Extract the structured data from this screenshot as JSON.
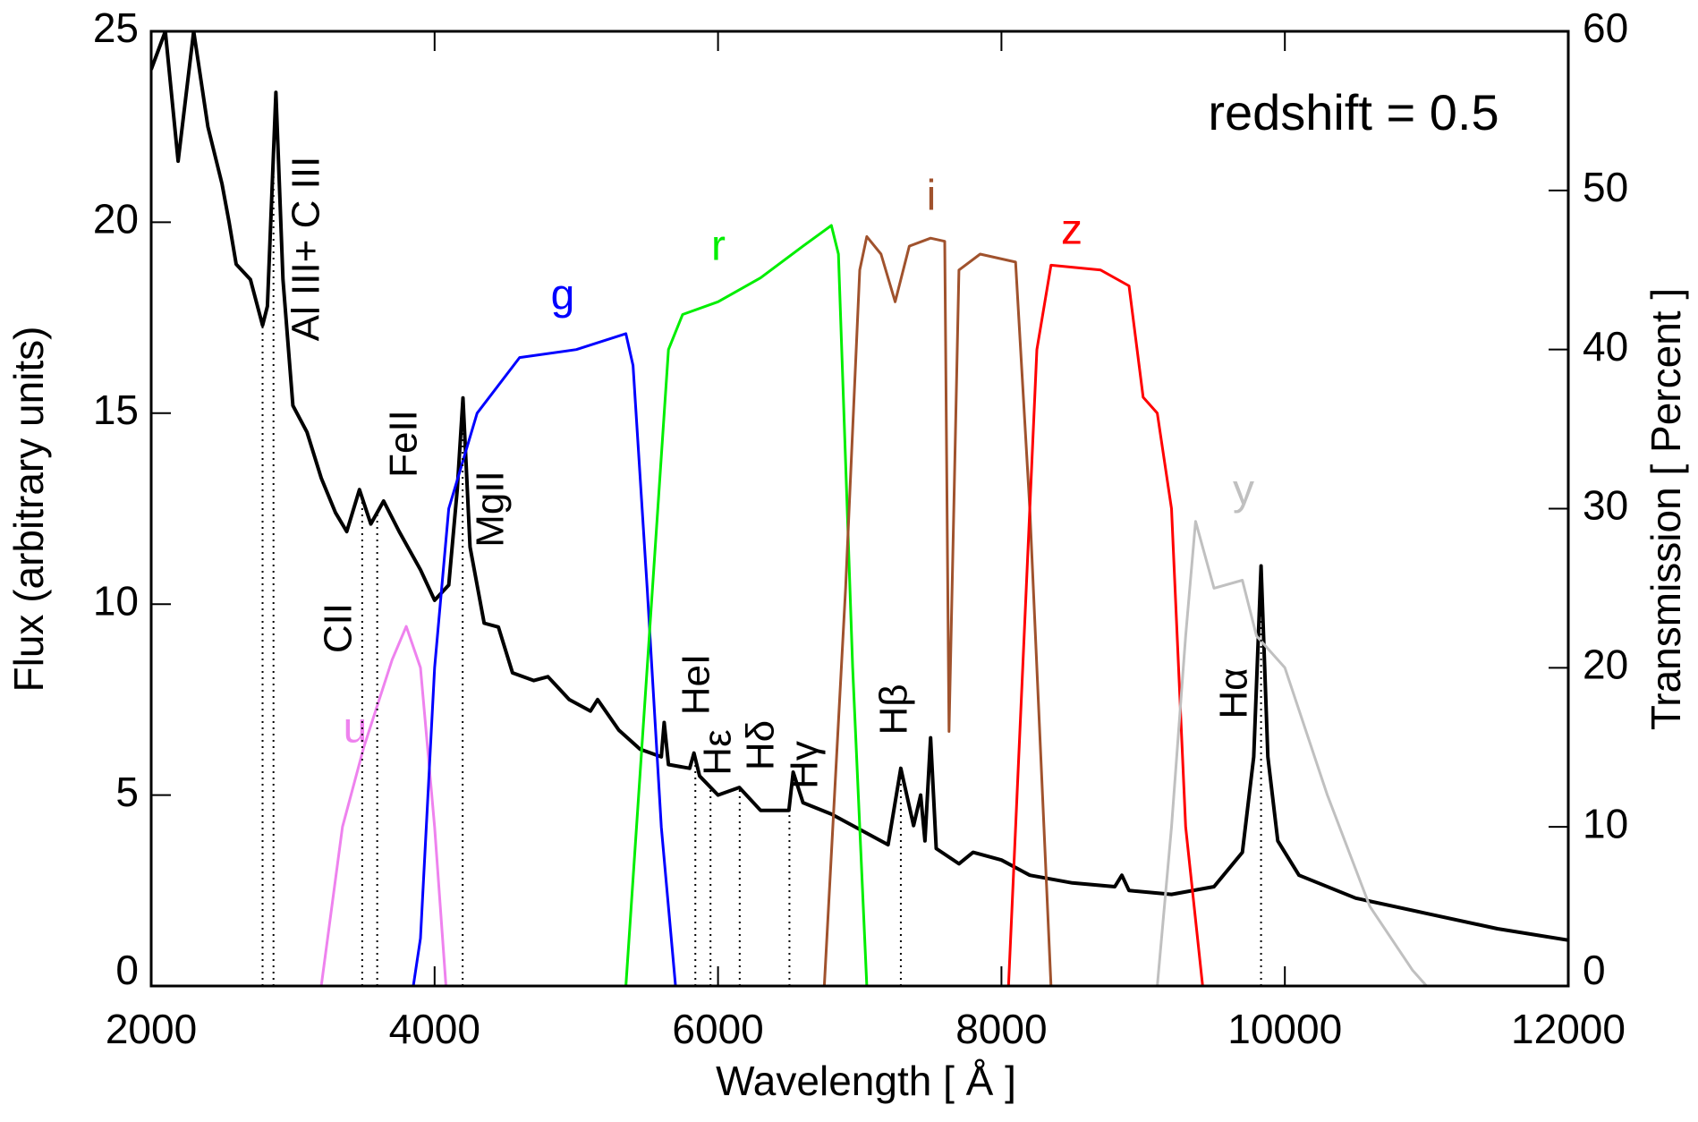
{
  "chart_data": {
    "type": "line",
    "note": "redshift = 0.5",
    "xlabel": "Wavelength [ Å ]",
    "ylabel": "Flux (arbitrary units)",
    "y2label": "Transmission [ Percent ]",
    "xlim": [
      2000,
      12000
    ],
    "xticks": [
      2000,
      4000,
      6000,
      8000,
      10000,
      12000
    ],
    "ylim": [
      0,
      25
    ],
    "yticks": [
      0,
      5,
      10,
      15,
      20,
      25
    ],
    "y2lim": [
      0,
      60
    ],
    "y2ticks": [
      0,
      10,
      20,
      30,
      40,
      50,
      60
    ],
    "series": [
      {
        "color": "#000000",
        "x": [
          2000,
          2100,
          2190,
          2300,
          2400,
          2500,
          2550,
          2600,
          2700,
          2786,
          2820,
          2880,
          2930,
          3000,
          3100,
          3200,
          3300,
          3380,
          3470,
          3550,
          3640,
          3750,
          3900,
          4000,
          4100,
          4160,
          4200,
          4250,
          4350,
          4450,
          4550,
          4700,
          4800,
          4950,
          5100,
          5150,
          5300,
          5450,
          5600,
          5620,
          5650,
          5800,
          5830,
          5870,
          6000,
          6150,
          6300,
          6500,
          6530,
          6600,
          6800,
          7000,
          7200,
          7290,
          7380,
          7430,
          7460,
          7500,
          7540,
          7700,
          7800,
          8000,
          8200,
          8500,
          8800,
          8850,
          8900,
          9200,
          9500,
          9700,
          9780,
          9832,
          9880,
          9950,
          10100,
          10500,
          11000,
          11500,
          12000
        ],
        "values": [
          24.0,
          25.0,
          21.6,
          25.0,
          22.5,
          21.0,
          20.0,
          18.9,
          18.5,
          17.3,
          17.8,
          23.4,
          18.5,
          15.2,
          14.5,
          13.3,
          12.4,
          11.9,
          13.0,
          12.1,
          12.7,
          11.9,
          10.9,
          10.1,
          10.5,
          13.0,
          15.4,
          11.5,
          9.5,
          9.4,
          8.2,
          8.0,
          8.1,
          7.5,
          7.2,
          7.5,
          6.7,
          6.2,
          6.0,
          6.9,
          5.8,
          5.7,
          6.1,
          5.5,
          5.0,
          5.2,
          4.6,
          4.6,
          5.6,
          4.8,
          4.5,
          4.1,
          3.7,
          5.7,
          4.2,
          5.0,
          3.8,
          6.5,
          3.6,
          3.2,
          3.5,
          3.3,
          2.9,
          2.7,
          2.6,
          2.9,
          2.5,
          2.4,
          2.6,
          3.5,
          6.0,
          11.0,
          6.0,
          3.8,
          2.9,
          2.3,
          1.9,
          1.5,
          1.2
        ]
      },
      {
        "name": "u",
        "color": "#ee82ee",
        "axis": "y2",
        "x": [
          3200,
          3350,
          3500,
          3700,
          3800,
          3900,
          4000,
          4080
        ],
        "values": [
          0,
          10,
          15,
          20.5,
          22.6,
          20,
          10,
          0
        ]
      },
      {
        "name": "g",
        "color": "#0000ff",
        "axis": "y2",
        "x": [
          3850,
          3900,
          4000,
          4100,
          4300,
          4600,
          5000,
          5350,
          5400,
          5500,
          5600,
          5700
        ],
        "values": [
          0,
          3,
          20,
          30,
          36,
          39.5,
          40,
          41,
          39,
          25,
          10,
          0
        ]
      },
      {
        "name": "r",
        "color": "#00ee00",
        "axis": "y2",
        "x": [
          5350,
          5500,
          5650,
          5750,
          6000,
          6300,
          6600,
          6800,
          6850,
          6950,
          7050
        ],
        "values": [
          0,
          20,
          40,
          42.2,
          43,
          44.5,
          46.5,
          47.8,
          46,
          20,
          0
        ]
      },
      {
        "name": "i",
        "color": "#a0522d",
        "axis": "y2",
        "x": [
          6750,
          6900,
          7000,
          7050,
          7150,
          7250,
          7350,
          7500,
          7600,
          7630,
          7700,
          7850,
          8100,
          8200,
          8300,
          8350
        ],
        "values": [
          0,
          25,
          45,
          47.1,
          46,
          43,
          46.5,
          47,
          46.8,
          16,
          45,
          46,
          45.5,
          30,
          10,
          0
        ]
      },
      {
        "name": "z",
        "color": "#ff0000",
        "axis": "y2",
        "x": [
          8050,
          8150,
          8250,
          8350,
          8700,
          8900,
          9000,
          9100,
          9200,
          9300,
          9420
        ],
        "values": [
          0,
          20,
          40,
          45.3,
          45,
          44,
          37,
          36,
          30,
          10,
          0
        ]
      },
      {
        "name": "y",
        "color": "#c0c0c0",
        "axis": "y2",
        "x": [
          9100,
          9200,
          9300,
          9370,
          9500,
          9700,
          9800,
          10000,
          10300,
          10600,
          10900,
          11000
        ],
        "values": [
          0,
          10,
          22,
          29.2,
          25,
          25.5,
          22,
          20,
          12,
          5,
          1,
          0
        ]
      }
    ],
    "line_markers": [
      2786,
      2863,
      3489,
      3595,
      4198,
      5840,
      5947,
      6153,
      6504,
      7290,
      9832
    ],
    "annotations": [
      {
        "text": "Al III+ C III"
      },
      {
        "text": "CII"
      },
      {
        "text": "FeII"
      },
      {
        "text": "MgII"
      },
      {
        "text": "HeI"
      },
      {
        "text": "Hε"
      },
      {
        "text": "Hδ"
      },
      {
        "text": "Hγ"
      },
      {
        "text": "Hβ"
      },
      {
        "text": "Hα"
      }
    ]
  }
}
